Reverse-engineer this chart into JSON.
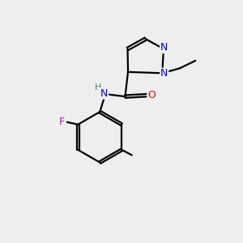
{
  "background_color": "#eeeeee",
  "bond_color": "#000000",
  "atom_colors": {
    "N": "#0000ee",
    "O": "#ee0000",
    "F": "#cc00cc",
    "C": "#000000",
    "H": "#408080"
  },
  "figsize": [
    3.0,
    3.0
  ],
  "dpi": 100,
  "lw": 1.6,
  "fontsize": 9
}
